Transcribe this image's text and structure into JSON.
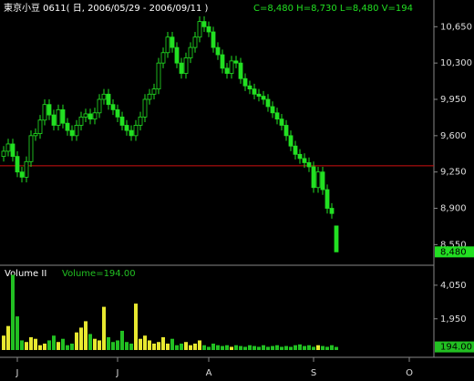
{
  "chart_data": {
    "type": "candlestick",
    "title": "東京小豆 0611( 日, 2006/05/29 - 2006/09/11 )",
    "header_info": "C=8,480 H=8,730 L=8,480 V=194",
    "color": "#22e022",
    "up_volume_color": "#e8e830",
    "down_volume_color": "#22c022",
    "open": [
      9400,
      9450,
      9520,
      9400,
      9250,
      9200,
      9350,
      9600,
      9620,
      9750,
      9900,
      9800,
      9700,
      9850,
      9720,
      9650,
      9600,
      9700,
      9780,
      9810,
      9760,
      9820,
      9950,
      10000,
      9900,
      9850,
      9780,
      9700,
      9650,
      9600,
      9700,
      9780,
      9950,
      10000,
      10050,
      10300,
      10400,
      10550,
      10450,
      10300,
      10200,
      10350,
      10450,
      10550,
      10700,
      10650,
      10600,
      10450,
      10380,
      10250,
      10200,
      10320,
      10300,
      10150,
      10080,
      10050,
      10000,
      9980,
      9950,
      9880,
      9820,
      9760,
      9700,
      9600,
      9500,
      9420,
      9380,
      9340,
      9300,
      9100,
      9250,
      9080,
      8900,
      8730
    ],
    "high": [
      9500,
      9570,
      9570,
      9450,
      9300,
      9400,
      9650,
      9670,
      9800,
      9950,
      9950,
      9850,
      9900,
      9900,
      9770,
      9700,
      9750,
      9830,
      9860,
      9860,
      9870,
      10000,
      10050,
      10050,
      9950,
      9900,
      9830,
      9750,
      9700,
      9750,
      9830,
      10000,
      10050,
      10100,
      10350,
      10450,
      10600,
      10600,
      10500,
      10350,
      10400,
      10500,
      10600,
      10750,
      10750,
      10700,
      10650,
      10500,
      10430,
      10300,
      10370,
      10370,
      10350,
      10200,
      10130,
      10100,
      10050,
      10030,
      10000,
      9930,
      9870,
      9810,
      9750,
      9650,
      9550,
      9470,
      9430,
      9390,
      9350,
      9300,
      9300,
      9130,
      8950,
      8730
    ],
    "low": [
      9350,
      9400,
      9350,
      9200,
      9150,
      9150,
      9300,
      9550,
      9570,
      9700,
      9750,
      9650,
      9650,
      9670,
      9600,
      9550,
      9550,
      9650,
      9730,
      9710,
      9710,
      9770,
      9900,
      9850,
      9800,
      9730,
      9650,
      9600,
      9550,
      9550,
      9650,
      9730,
      9900,
      9950,
      10000,
      10250,
      10350,
      10400,
      10250,
      10150,
      10150,
      10300,
      10400,
      10500,
      10600,
      10550,
      10400,
      10330,
      10200,
      10150,
      10150,
      10250,
      10100,
      10030,
      10000,
      9950,
      9930,
      9900,
      9830,
      9770,
      9710,
      9650,
      9550,
      9450,
      9370,
      9330,
      9290,
      9250,
      9050,
      9050,
      9030,
      8850,
      8800,
      8480
    ],
    "close": [
      9450,
      9520,
      9400,
      9250,
      9200,
      9350,
      9600,
      9620,
      9750,
      9900,
      9800,
      9700,
      9850,
      9720,
      9650,
      9600,
      9700,
      9780,
      9810,
      9760,
      9820,
      9950,
      10000,
      9900,
      9850,
      9780,
      9700,
      9650,
      9600,
      9700,
      9780,
      9950,
      10000,
      10050,
      10300,
      10400,
      10550,
      10450,
      10300,
      10200,
      10350,
      10450,
      10550,
      10700,
      10650,
      10600,
      10450,
      10380,
      10250,
      10200,
      10320,
      10300,
      10150,
      10080,
      10050,
      10000,
      9980,
      9950,
      9880,
      9820,
      9760,
      9700,
      9600,
      9500,
      9420,
      9380,
      9340,
      9300,
      9100,
      9250,
      9080,
      8900,
      8850,
      8480
    ],
    "volume": [
      900,
      1500,
      4700,
      2100,
      600,
      500,
      800,
      700,
      300,
      400,
      600,
      900,
      500,
      700,
      300,
      400,
      1100,
      1400,
      1800,
      1000,
      700,
      600,
      2700,
      800,
      500,
      600,
      1200,
      500,
      400,
      2900,
      700,
      900,
      600,
      400,
      500,
      800,
      400,
      700,
      300,
      400,
      500,
      300,
      400,
      600,
      300,
      200,
      400,
      300,
      250,
      300,
      200,
      300,
      250,
      200,
      300,
      250,
      200,
      300,
      200,
      250,
      300,
      200,
      250,
      200,
      300,
      350,
      250,
      300,
      200,
      300,
      250,
      200,
      300,
      194
    ],
    "ylim": [
      8360,
      10890
    ],
    "yticks": [
      {
        "value": 10650,
        "label": "10,650"
      },
      {
        "value": 10300,
        "label": "10,300"
      },
      {
        "value": 9950,
        "label": "9,950"
      },
      {
        "value": 9600,
        "label": "9,600"
      },
      {
        "value": 9250,
        "label": "9,250"
      },
      {
        "value": 8900,
        "label": "8,900"
      },
      {
        "value": 8550,
        "label": "8,550"
      }
    ],
    "last_price": {
      "value": 8480,
      "label": "8,480"
    },
    "ref_line": 9310,
    "ref_line_color": "#d01010",
    "volume_title": "Volume II",
    "volume_legend": "Volume=194.00",
    "volume_ylim": [
      0,
      5240
    ],
    "volume_yticks": [
      {
        "value": 4050,
        "label": "4,050"
      },
      {
        "value": 1950,
        "label": "1,950"
      }
    ],
    "last_volume": {
      "value": 194,
      "label": "194.00"
    },
    "x_labels": [
      {
        "index": 3,
        "label": "J"
      },
      {
        "index": 25,
        "label": "J"
      },
      {
        "index": 45,
        "label": "A"
      },
      {
        "index": 68,
        "label": "S"
      },
      {
        "index": 89,
        "label": "O"
      }
    ]
  }
}
